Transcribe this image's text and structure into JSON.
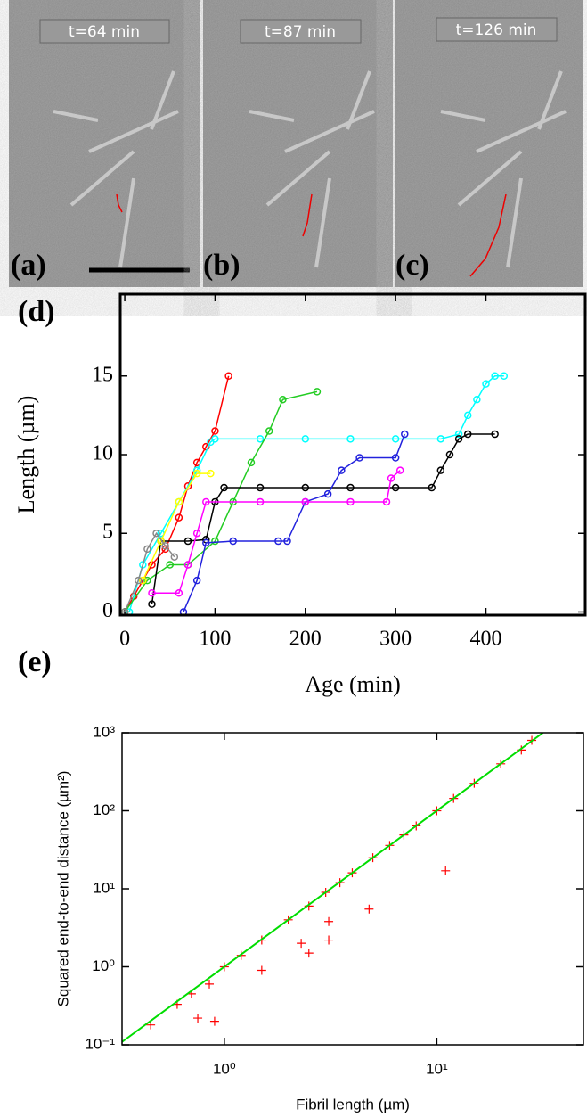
{
  "images": [
    {
      "time": "t=64 min",
      "label": "(a)"
    },
    {
      "time": "t=87 min",
      "label": "(b)"
    },
    {
      "time": "t=126 min",
      "label": "(c)"
    }
  ],
  "chart_data": [
    {
      "type": "line",
      "panel_label": "(d)",
      "x_label": "Age (min)",
      "y_label": "Length (µm)",
      "xlim": [
        -5,
        510
      ],
      "ylim": [
        -0.2,
        20.2
      ],
      "xticks": [
        0,
        100,
        200,
        300,
        400
      ],
      "yticks": [
        0,
        5,
        10,
        15
      ],
      "grid": false,
      "series": [
        {
          "color": "#ff0000",
          "x": [
            0,
            10,
            20,
            30,
            45,
            60,
            70,
            80,
            90,
            100,
            115
          ],
          "values": [
            0,
            1,
            2,
            3,
            4,
            6,
            8,
            9.5,
            10.5,
            11.5,
            15
          ]
        },
        {
          "color": "#00ffff",
          "x": [
            5,
            20,
            40,
            60,
            80,
            95,
            100,
            150,
            200,
            250,
            300,
            350,
            370,
            380,
            390,
            400,
            410,
            420
          ],
          "values": [
            0,
            3,
            5,
            7,
            9,
            10.8,
            11,
            11,
            11,
            11,
            11,
            11,
            11.3,
            12.5,
            13.5,
            14.5,
            15,
            15
          ]
        },
        {
          "color": "#22cc22",
          "x": [
            0,
            25,
            50,
            70,
            100,
            120,
            140,
            160,
            175,
            213
          ],
          "values": [
            0,
            2,
            3,
            3,
            4.5,
            7,
            9.5,
            11.5,
            13.5,
            14
          ]
        },
        {
          "color": "#000000",
          "x": [
            30,
            40,
            70,
            90,
            100,
            110,
            150,
            200,
            250,
            300,
            340,
            350,
            360,
            370,
            380,
            410
          ],
          "values": [
            0.5,
            4.5,
            4.5,
            4.6,
            7,
            7.9,
            7.9,
            7.9,
            7.9,
            7.9,
            7.9,
            9,
            10,
            11,
            11.3,
            11.3
          ]
        },
        {
          "color": "#2222dd",
          "x": [
            65,
            80,
            90,
            120,
            170,
            180,
            200,
            225,
            240,
            260,
            300,
            310
          ],
          "values": [
            0,
            2,
            4.4,
            4.5,
            4.5,
            4.5,
            7,
            7.5,
            9,
            9.8,
            9.8,
            11.3
          ]
        },
        {
          "color": "#ff00ff",
          "x": [
            30,
            60,
            70,
            80,
            90,
            150,
            200,
            250,
            290,
            295,
            305
          ],
          "values": [
            1.2,
            1.2,
            3,
            5,
            7,
            7,
            7,
            7,
            7,
            8.5,
            9
          ]
        },
        {
          "color": "#ffff00",
          "x": [
            20,
            40,
            60,
            80,
            95
          ],
          "values": [
            2,
            4.5,
            7,
            8.8,
            8.8
          ]
        },
        {
          "color": "#888888",
          "x": [
            0,
            15,
            25,
            35,
            45,
            55
          ],
          "values": [
            0,
            2,
            4,
            5,
            4.2,
            3.5
          ]
        }
      ]
    },
    {
      "type": "scatter",
      "panel_label": "(e)",
      "x_label": "Fibril length (µm)",
      "y_label": "Squared end-to-end distance (µm²)",
      "log_x": true,
      "log_y": true,
      "xlim": [
        0.33,
        49
      ],
      "ylim": [
        0.1,
        1000
      ],
      "xticks": [
        {
          "value": 1,
          "label": "10⁰"
        },
        {
          "value": 10,
          "label": "10¹"
        }
      ],
      "yticks": [
        {
          "value": 0.1,
          "label": "10⁻¹"
        },
        {
          "value": 1,
          "label": "10⁰"
        },
        {
          "value": 10,
          "label": "10¹"
        },
        {
          "value": 100,
          "label": "10²"
        },
        {
          "value": 1000,
          "label": "10³"
        }
      ],
      "series": [
        {
          "color": "#ff0000",
          "marker": "+",
          "x": [
            0.45,
            0.6,
            0.7,
            0.75,
            0.9,
            0.85,
            1,
            1.2,
            1.5,
            1.5,
            2,
            2.3,
            2.5,
            2.5,
            3,
            3.1,
            3.1,
            3.5,
            4,
            4.8,
            5,
            6,
            7,
            8,
            10,
            11,
            12,
            15,
            20,
            25,
            28
          ],
          "values": [
            0.18,
            0.33,
            0.45,
            0.22,
            0.2,
            0.6,
            1,
            1.4,
            0.9,
            2.2,
            4,
            2,
            1.5,
            6,
            9,
            2.2,
            3.8,
            12,
            16,
            5.5,
            25,
            36,
            49,
            64,
            100,
            17,
            144,
            225,
            400,
            600,
            800
          ]
        },
        {
          "color": "#00dd00",
          "marker": "line",
          "x": [
            0.33,
            31.6
          ],
          "values": [
            0.109,
            1000
          ]
        }
      ]
    }
  ]
}
